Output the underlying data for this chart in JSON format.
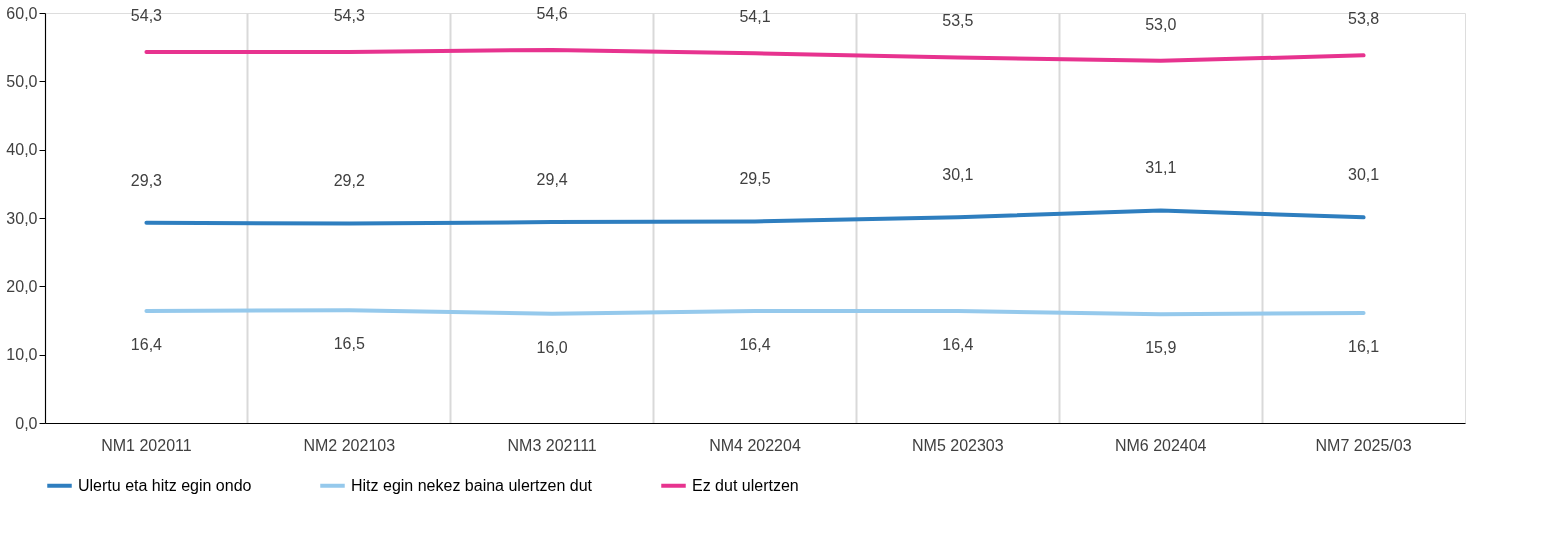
{
  "chart_data": {
    "type": "line",
    "categories": [
      "NM1 202011",
      "NM2 202103",
      "NM3 202111",
      "NM4 202204",
      "NM5 202303",
      "NM6 202404",
      "NM7 2025/03"
    ],
    "series": [
      {
        "name": "Ulertu eta hitz egin ondo",
        "color": "#2e7ebf",
        "values": [
          29.3,
          29.2,
          29.4,
          29.5,
          30.1,
          31.1,
          30.1
        ],
        "value_labels": [
          "29,3",
          "29,2",
          "29,4",
          "29,5",
          "30,1",
          "31,1",
          "30,1"
        ]
      },
      {
        "name": "Hitz egin nekez baina ulertzen dut",
        "color": "#95c9ec",
        "values": [
          16.4,
          16.5,
          16.0,
          16.4,
          16.4,
          15.9,
          16.1
        ],
        "value_labels": [
          "16,4",
          "16,5",
          "16,0",
          "16,4",
          "16,4",
          "15,9",
          "16,1"
        ]
      },
      {
        "name": "Ez dut ulertzen",
        "color": "#e7338f",
        "values": [
          54.3,
          54.3,
          54.6,
          54.1,
          53.5,
          53.0,
          53.8
        ],
        "value_labels": [
          "54,3",
          "54,3",
          "54,6",
          "54,1",
          "53,5",
          "53,0",
          "53,8"
        ]
      }
    ],
    "ylim": [
      0,
      60
    ],
    "yticks": [
      {
        "value": 0,
        "label": "0,0"
      },
      {
        "value": 10,
        "label": "10,0"
      },
      {
        "value": 20,
        "label": "20,0"
      },
      {
        "value": 30,
        "label": "30,0"
      },
      {
        "value": 40,
        "label": "40,0"
      },
      {
        "value": 50,
        "label": "50,0"
      },
      {
        "value": 60,
        "label": "60,0"
      }
    ],
    "grid": "x",
    "legend": "bottom",
    "marker": "none",
    "line_style": "solid"
  }
}
